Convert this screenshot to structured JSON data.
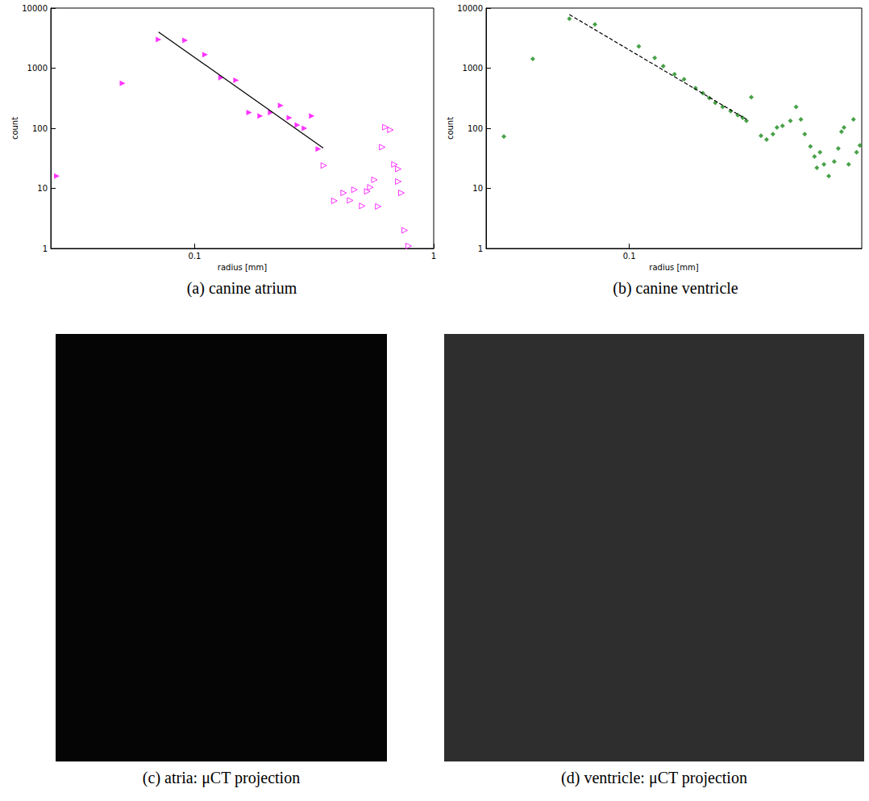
{
  "chart_data": [
    {
      "type": "scatter",
      "title": "(a) canine atrium",
      "x_label": "radius [mm]",
      "y_label": "count",
      "log": true,
      "xlim": [
        0.025,
        1
      ],
      "ylim": [
        1,
        10000
      ],
      "xticks": [
        0.1,
        1
      ],
      "yticks": [
        1,
        10,
        100,
        1000,
        10000
      ],
      "series": [
        {
          "type": "scatter",
          "marker": "triangle-right",
          "color": "#ff00ff",
          "x": [
            0.0265,
            0.0499,
            0.0706,
            0.0912,
            0.1105,
            0.129,
            0.149,
            0.169,
            0.188,
            0.208,
            0.229,
            0.249,
            0.269,
            0.288,
            0.309,
            0.329
          ],
          "values": [
            16,
            560,
            3000,
            2900,
            1680,
            698,
            630,
            182,
            160,
            182,
            240,
            150,
            113,
            100,
            160,
            45
          ]
        },
        {
          "type": "scatter",
          "marker": "triangle-right-open",
          "color": "#ff00ff",
          "x": [
            0.347,
            0.384,
            0.42,
            0.447,
            0.466,
            0.502,
            0.527,
            0.543,
            0.565,
            0.586,
            0.609,
            0.628,
            0.659,
            0.685,
            0.711,
            0.711,
            0.733,
            0.756,
            0.786
          ],
          "values": [
            24,
            6.2,
            8.4,
            6.3,
            9.5,
            5.1,
            8.9,
            10.4,
            13.9,
            5,
            48.5,
            104,
            94,
            25,
            21,
            13,
            8.4,
            2,
            1.1
          ]
        },
        {
          "type": "line",
          "line_style": "solid",
          "color": "#000000",
          "x": [
            0.0706,
            0.345
          ],
          "values": [
            4000,
            47
          ]
        }
      ]
    },
    {
      "type": "scatter",
      "title": "(b) canine ventricle",
      "x_label": "radius [mm]",
      "y_label": "count",
      "log": true,
      "xlim": [
        0.025,
        0.95
      ],
      "ylim": [
        1,
        10000
      ],
      "xticks": [
        0.1
      ],
      "yticks": [
        1,
        10,
        100,
        1000,
        10000
      ],
      "series": [
        {
          "type": "scatter",
          "marker": "diamond",
          "color": "#1a8a1a",
          "x": [
            0.0297,
            0.0393,
            0.056,
            0.0717,
            0.1097,
            0.128,
            0.139,
            0.155,
            0.17,
            0.19,
            0.204,
            0.217,
            0.23,
            0.247,
            0.267,
            0.286,
            0.3,
            0.311,
            0.326,
            0.358,
            0.378,
            0.402,
            0.418,
            0.441,
            0.476,
            0.503,
            0.527,
            0.547,
            0.578,
            0.601,
            0.615,
            0.634,
            0.659,
            0.69,
            0.728,
            0.757,
            0.781,
            0.8,
            0.837,
            0.877,
            0.904,
            0.933
          ],
          "values": [
            73,
            1430,
            6650,
            5350,
            2295,
            1480,
            1080,
            791,
            655,
            464,
            385,
            319,
            264,
            226,
            193,
            165,
            150,
            133,
            329,
            75,
            65,
            80,
            103,
            110,
            133,
            226,
            141,
            80,
            50,
            34,
            22,
            40,
            25,
            16,
            28,
            46,
            88,
            103,
            25,
            141,
            40,
            52
          ]
        },
        {
          "type": "line",
          "line_style": "dashed",
          "color": "#000000",
          "x": [
            0.056,
            0.311
          ],
          "values": [
            7800,
            141
          ]
        }
      ]
    }
  ],
  "images": [
    {
      "caption": "(c) atria: μCT projection"
    },
    {
      "caption": "(d) ventricle: μCT projection"
    }
  ]
}
